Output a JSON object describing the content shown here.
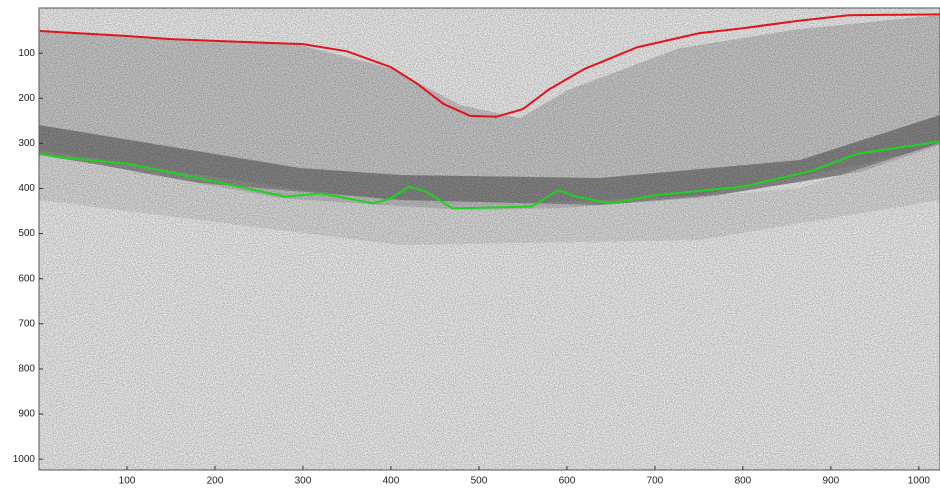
{
  "chart_data": {
    "type": "line",
    "xlim": [
      0,
      1024
    ],
    "ylim": [
      1024,
      0
    ],
    "xticks": [
      100,
      200,
      300,
      400,
      500,
      600,
      700,
      800,
      900,
      1000
    ],
    "yticks": [
      100,
      200,
      300,
      400,
      500,
      600,
      700,
      800,
      900,
      1000
    ],
    "series": [
      {
        "color": "#e0161c",
        "x": [
          1,
          100,
          150,
          200,
          300,
          350,
          400,
          430,
          460,
          490,
          520,
          550,
          580,
          620,
          680,
          750,
          800,
          860,
          920,
          1024
        ],
        "values": [
          51,
          62,
          69,
          73,
          80,
          96,
          131,
          168,
          213,
          239,
          241,
          224,
          180,
          135,
          87,
          56,
          45,
          29,
          16,
          14
        ]
      },
      {
        "color": "#1fd21f",
        "x": [
          1,
          20,
          100,
          200,
          280,
          320,
          380,
          400,
          420,
          440,
          470,
          520,
          560,
          590,
          610,
          650,
          700,
          800,
          880,
          930,
          1024
        ],
        "values": [
          323,
          330,
          345,
          385,
          418,
          411,
          433,
          422,
          396,
          407,
          444,
          442,
          440,
          404,
          418,
          433,
          415,
          396,
          360,
          323,
          296
        ]
      }
    ]
  }
}
